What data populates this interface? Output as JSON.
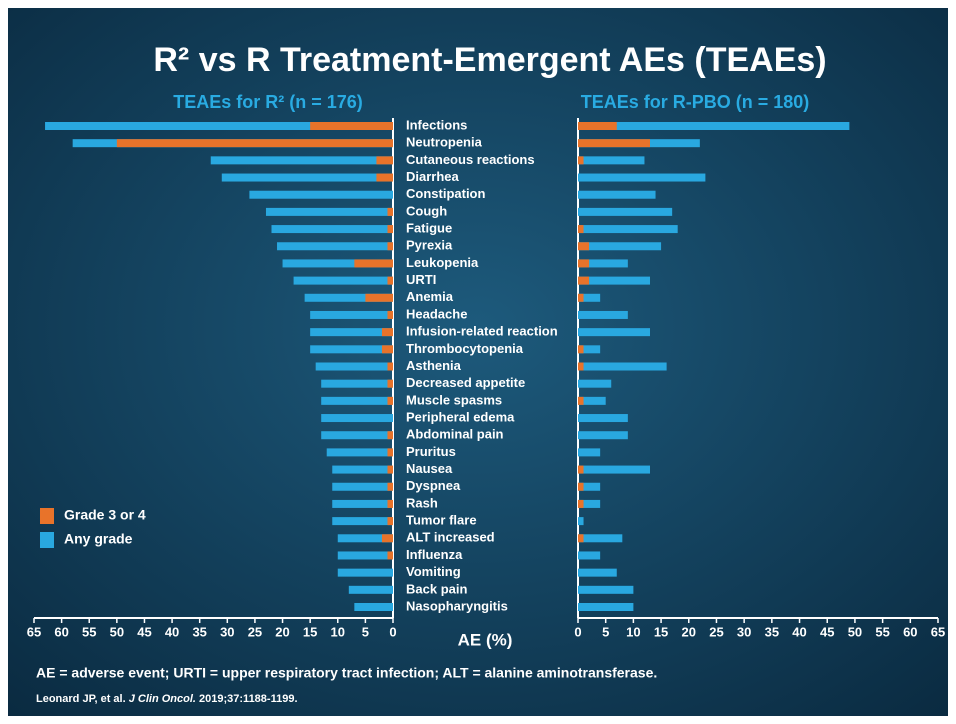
{
  "chart_data": {
    "type": "butterfly_bar",
    "title": "R² vs R Treatment-Emergent AEs (TEAEs)",
    "x_label": "AE (%)",
    "categories": [
      "Infections",
      "Neutropenia",
      "Cutaneous reactions",
      "Diarrhea",
      "Constipation",
      "Cough",
      "Fatigue",
      "Pyrexia",
      "Leukopenia",
      "URTI",
      "Anemia",
      "Headache",
      "Infusion-related reaction",
      "Thrombocytopenia",
      "Asthenia",
      "Decreased appetite",
      "Muscle spasms",
      "Peripheral edema",
      "Abdominal pain",
      "Pruritus",
      "Nausea",
      "Dyspnea",
      "Rash",
      "Tumor flare",
      "ALT increased",
      "Influenza",
      "Vomiting",
      "Back pain",
      "Nasopharyngitis"
    ],
    "series": [
      {
        "name": "Any grade",
        "color": "#29a8e0"
      },
      {
        "name": "Grade 3 or 4",
        "color": "#e8732a"
      }
    ],
    "legend": "lower left",
    "panels": [
      {
        "title": "TEAEs for R² (n = 176)",
        "direction": "left",
        "xlim": [
          0,
          65
        ],
        "xticks": [
          0,
          5,
          10,
          15,
          20,
          25,
          30,
          35,
          40,
          45,
          50,
          55,
          60,
          65
        ],
        "series_values": [
          [
            63,
            58,
            33,
            31,
            26,
            23,
            22,
            21,
            20,
            18,
            16,
            15,
            15,
            15,
            14,
            13,
            13,
            13,
            13,
            12,
            11,
            11,
            11,
            11,
            10,
            10,
            10,
            8,
            7
          ],
          [
            15,
            50,
            3,
            3,
            0,
            1,
            1,
            1,
            7,
            1,
            5,
            1,
            2,
            2,
            1,
            1,
            1,
            0,
            1,
            1,
            1,
            1,
            1,
            1,
            2,
            1,
            0,
            0,
            0
          ]
        ]
      },
      {
        "title": "TEAEs for R-PBO (n = 180)",
        "direction": "right",
        "xlim": [
          0,
          65
        ],
        "xticks": [
          0,
          5,
          10,
          15,
          20,
          25,
          30,
          35,
          40,
          45,
          50,
          55,
          60,
          65
        ],
        "series_values": [
          [
            49,
            22,
            12,
            23,
            14,
            17,
            18,
            15,
            9,
            13,
            4,
            9,
            13,
            4,
            16,
            6,
            5,
            9,
            9,
            4,
            13,
            4,
            4,
            1,
            8,
            4,
            7,
            10,
            10
          ],
          [
            7,
            13,
            1,
            0,
            0,
            0,
            1,
            2,
            2,
            2,
            1,
            0,
            0,
            1,
            1,
            0,
            1,
            0,
            0,
            0,
            1,
            1,
            1,
            0,
            1,
            0,
            0,
            0,
            0
          ]
        ]
      }
    ],
    "footnote": "AE = adverse event; URTI = upper respiratory tract infection; ALT = alanine aminotransferase.",
    "citation": [
      "Leonard JP, et al. ",
      "J Clin Oncol.",
      " 2019;37:1188-1199."
    ]
  }
}
